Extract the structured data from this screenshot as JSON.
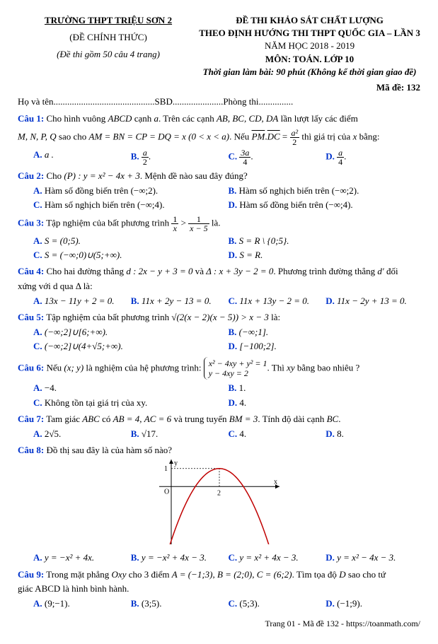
{
  "header": {
    "school": "TRƯỜNG THPT TRIỆU SƠN 2",
    "official": "(ĐỀ CHÍNH THỨC)",
    "note": "(Đề thi gồm 50 câu 4 trang)",
    "title1": "ĐỀ THI KHẢO SÁT CHẤT LƯỢNG",
    "title2": "THEO ĐỊNH HƯỚNG THI THPT QUỐC GIA – LẦN 3",
    "year": "NĂM HỌC 2018 - 2019",
    "subject": "MÔN: TOÁN. LỚP 10",
    "time": "Thời gian làm bài: 90 phút (Không kể thời gian giao đề)"
  },
  "made": "Mã đề: 132",
  "fill": "Họ và tên............................................SBD......................Phòng thi...............",
  "q1": {
    "label": "Câu 1:",
    "text1": " Cho hình vuông ",
    "abcd": "ABCD",
    "text2": " cạnh ",
    "a": "a",
    "text3": ". Trên các cạnh ",
    "edges": "AB, BC, CD, DA",
    "text4": " lần lượt lấy các điểm",
    "line2a": "M, N, P, Q",
    "line2b": " sao cho ",
    "eq": "AM = BN = CP = DQ = x  (0 < x < a)",
    "line2c": ". Nếu ",
    "pm": "PM",
    "dc": "DC",
    "line2d": " thì giá trị của ",
    "x": "x",
    "line2e": " bằng:",
    "fn": "a²",
    "fd": "2",
    "A": "a .",
    "Bn": "a",
    "Bd": "2",
    "Cn": "3a",
    "Cd": "4",
    "Dn": "a",
    "Dd": "4"
  },
  "q2": {
    "label": "Câu 2:",
    "t1": " Cho ",
    "p": "(P) : y = x² − 4x + 3",
    "t2": ". Mệnh đề nào sau đây đúng?",
    "A": "Hàm số đồng biến trên (−∞;2).",
    "B": "Hàm số nghịch biến trên (−∞;2).",
    "C": "Hàm số nghịch biến trên (−∞;4).",
    "D": "Hàm số đồng biến trên (−∞;4)."
  },
  "q3": {
    "label": "Câu 3:",
    "t1": " Tập nghiệm của bất phương trình ",
    "fn1": "1",
    "fd1": "x",
    "fn2": "1",
    "fd2": "x − 5",
    "t2": " là.",
    "A": "S = (0;5).",
    "B": "S = R \\ {0;5}.",
    "C": "S = (−∞;0)∪(5;+∞).",
    "D": "S = R."
  },
  "q4": {
    "label": "Câu 4:",
    "t1": " Cho hai đường thẳng ",
    "d": "d : 2x − y + 3 = 0",
    "t2": " và ",
    "d2": "Δ : x + 3y − 2 = 0",
    "t3": ". Phương trình đường thẳng ",
    "dp": "d′",
    "t4": " đối",
    "line2": "xứng với d qua Δ là:",
    "A": "13x − 11y + 2 = 0.",
    "B": "11x + 2y − 13 = 0.",
    "C": "11x + 13y − 2 = 0.",
    "D": "11x − 2y + 13 = 0."
  },
  "q5": {
    "label": "Câu 5:",
    "t1": " Tập nghiệm của bất phương trình ",
    "sqrt": "√(2(x − 2)(x − 5)) > x − 3",
    "t2": " là:",
    "A": "(−∞;2]∪[6;+∞).",
    "B": "(−∞;1].",
    "C": "(−∞;2]∪(4+√5;+∞).",
    "D": "[−100;2]."
  },
  "q6": {
    "label": "Câu 6:",
    "t1": " Nếu ",
    "xy": "(x; y)",
    "t2": " là nghiệm của hệ phương trình: ",
    "e1": "x² − 4xy + y² = 1",
    "e2": "y − 4xy = 2",
    "t3": ". Thì ",
    "xyv": "xy",
    "t4": " bằng bao nhiêu ?",
    "A": "−4.",
    "B": "1.",
    "C": "Không tồn tại giá trị của xy.",
    "D": "4."
  },
  "q7": {
    "label": "Câu 7:",
    "t1": " Tam giác ",
    "abc": "ABC",
    "t2": " có ",
    "ab": "AB = 4",
    "t3": ", ",
    "ac": "AC = 6",
    "t4": " và trung tuyến ",
    "bm": "BM = 3",
    "t5": ". Tính độ dài cạnh ",
    "bc": "BC",
    "t6": ".",
    "A": "2√5.",
    "B": "√17.",
    "C": "4.",
    "D": "8."
  },
  "q8": {
    "label": "Câu 8:",
    "t": " Đồ thị sau đây là của hàm số nào?",
    "A": "y = −x² + 4x.",
    "B": "y = −x² + 4x − 3.",
    "C": "y = x² + 4x − 3.",
    "D": "y = x² − 4x − 3."
  },
  "q9": {
    "label": "Câu 9:",
    "t1": " Trong mặt phẳng ",
    "oxy": "Oxy",
    "t2": " cho 3 điểm ",
    "pts": "A = (−1;3), B = (2;0), C = (6;2)",
    "t3": ". Tìm tọa độ ",
    "Dv": "D",
    "t4": " sao cho tứ",
    "line2": "giác ABCD là hình bình hành.",
    "A": "(9;−1).",
    "B": "(3;5).",
    "C": "(5;3).",
    "D": "(−1;9)."
  },
  "graph": {
    "bg": "#ffffff",
    "axis": "#000000",
    "curve": "#c00000",
    "xlim": [
      -0.5,
      4.5
    ],
    "ylim": [
      -3.2,
      1.5
    ],
    "vertex_x": 2,
    "vertex_y": 1,
    "a": -1,
    "dash": "#888888"
  },
  "footer": "Trang 01 - Mã đề 132 - https://toanmath.com/"
}
